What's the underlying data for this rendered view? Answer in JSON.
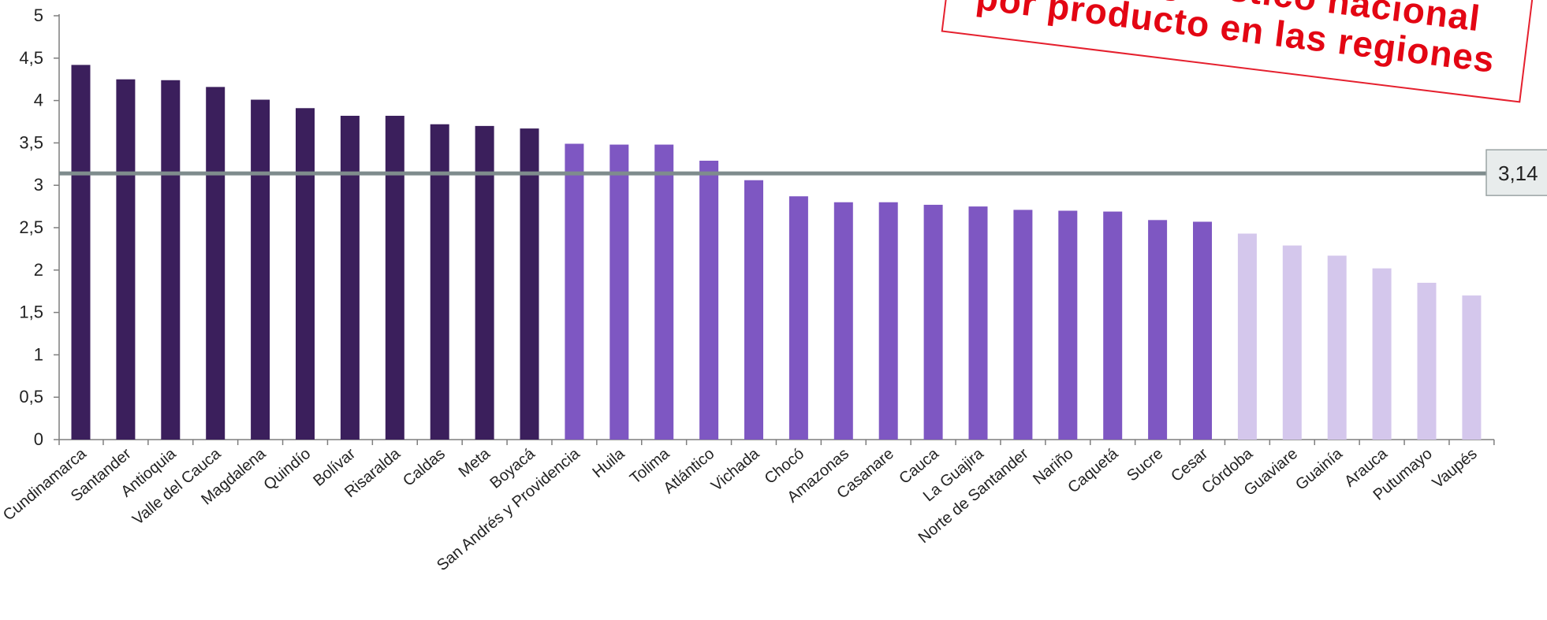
{
  "chart_data": {
    "type": "bar",
    "categories": [
      "Cundinamarca",
      "Santander",
      "Antioquia",
      "Valle del Cauca",
      "Magdalena",
      "Quindío",
      "Bolívar",
      "Risaralda",
      "Caldas",
      "Meta",
      "Boyacá",
      "San Andrés y Providencia",
      "Huila",
      "Tolima",
      "Atlántico",
      "Vichada",
      "Chocó",
      "Amazonas",
      "Casanare",
      "Cauca",
      "La Guajira",
      "Norte de Santander",
      "Nariño",
      "Caquetá",
      "Sucre",
      "Cesar",
      "Córdoba",
      "Guaviare",
      "Guainía",
      "Arauca",
      "Putumayo",
      "Vaupés"
    ],
    "values": [
      4.42,
      4.25,
      4.24,
      4.16,
      4.01,
      3.91,
      3.82,
      3.82,
      3.72,
      3.7,
      3.67,
      3.49,
      3.48,
      3.48,
      3.29,
      3.06,
      2.87,
      2.8,
      2.8,
      2.77,
      2.75,
      2.71,
      2.7,
      2.69,
      2.59,
      2.57,
      2.43,
      2.29,
      2.17,
      2.02,
      1.85,
      1.7
    ],
    "title_lines": [
      "Mapa diagnóstico nacional",
      "por producto en las regiones"
    ],
    "ylim": [
      0,
      5
    ],
    "y_ticks": [
      "0",
      "0,5",
      "1",
      "1,5",
      "2",
      "2,5",
      "3",
      "3,5",
      "4",
      "4,5",
      "5"
    ],
    "reference_line": {
      "value": 3.14,
      "label": "3,14",
      "color": "#7f8c8d"
    },
    "colors": {
      "high": "#3b1f5c",
      "mid": "#7e57c2",
      "low": "#d4c7ec"
    },
    "grid": false,
    "legend": "none"
  }
}
